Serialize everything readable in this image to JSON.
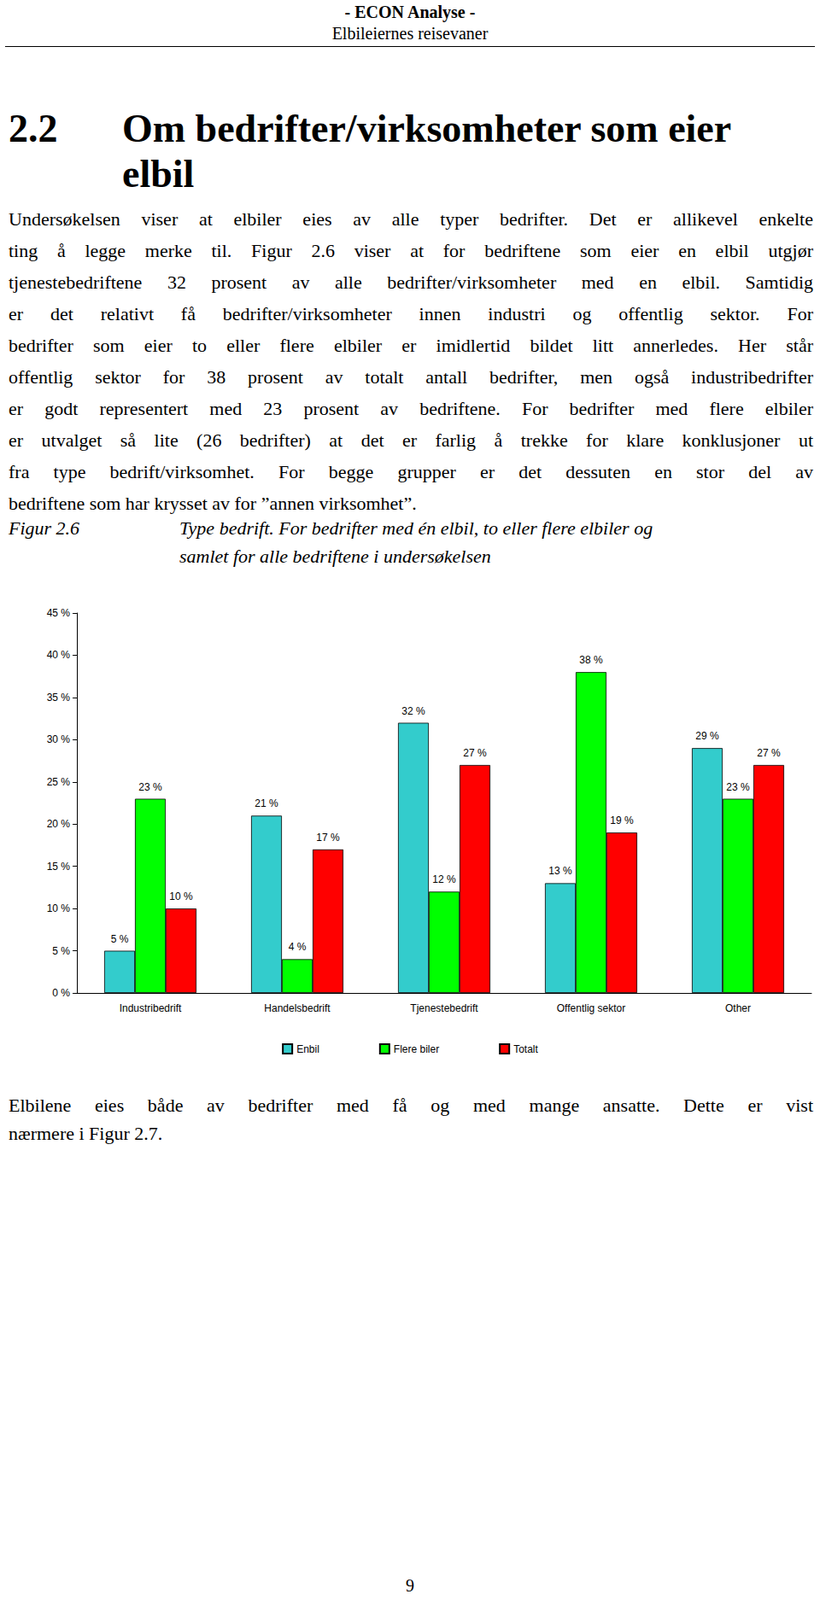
{
  "header": {
    "title": "- ECON Analyse -",
    "subtitle": "Elbileiernes reisevaner"
  },
  "heading": {
    "number": "2.2",
    "lines": [
      "Om bedrifter/virksomheter som eier",
      "elbil"
    ]
  },
  "paragraph": [
    "Undersøkelsen viser at elbiler eies av alle typer bedrifter. Det er allikevel enkelte",
    "ting å legge merke til. Figur 2.6 viser at for bedriftene som eier en elbil utgjør",
    "tjenestebedriftene 32 prosent av alle bedrifter/virksomheter med en elbil. Samtidig",
    "er det relativt få bedrifter/virksomheter innen industri og offentlig sektor. For",
    "bedrifter som eier to eller flere elbiler er imidlertid bildet litt annerledes. Her står",
    "offentlig sektor for 38 prosent av totalt antall bedrifter, men også industribedrifter",
    "er godt representert med 23 prosent av bedriftene. For bedrifter med flere elbiler",
    "er utvalget så lite (26 bedrifter) at det er farlig å trekke for klare konklusjoner ut",
    "fra type bedrift/virksomhet. For begge grupper er det dessuten en stor del av",
    "bedriftene som har krysset av for ”annen virksomhet”."
  ],
  "figure": {
    "label": "Figur 2.6",
    "caption": [
      "Type bedrift. For bedrifter med én elbil, to eller flere elbiler og",
      "samlet for alle bedriftene i undersøkelsen"
    ]
  },
  "chart_data": {
    "type": "bar",
    "categories": [
      "Industribedrift",
      "Handelsbedrift",
      "Tjenestebedrift",
      "Offentlig sektor",
      "Other"
    ],
    "series": [
      {
        "name": "Enbil",
        "color": "#33cccc",
        "values": [
          5,
          21,
          32,
          13,
          29
        ],
        "value_labels": [
          "5 %",
          "21 %",
          "32 %",
          "13 %",
          "29 %"
        ]
      },
      {
        "name": "Flere biler",
        "color": "#00ff00",
        "values": [
          23,
          4,
          12,
          38,
          23
        ],
        "value_labels": [
          "23 %",
          "4 %",
          "12 %",
          "38 %",
          "23 %"
        ]
      },
      {
        "name": "Totalt",
        "color": "#ff0000",
        "values": [
          10,
          17,
          27,
          19,
          27
        ],
        "value_labels": [
          "10 %",
          "17 %",
          "27 %",
          "19 %",
          "27 %"
        ]
      }
    ],
    "ylim": [
      0,
      45
    ],
    "yticks": [
      {
        "value": 0,
        "label": "0 %"
      },
      {
        "value": 5,
        "label": "5 %"
      },
      {
        "value": 10,
        "label": "10 %"
      },
      {
        "value": 15,
        "label": "15 %"
      },
      {
        "value": 20,
        "label": "20 %"
      },
      {
        "value": 25,
        "label": "25 %"
      },
      {
        "value": 30,
        "label": "30 %"
      },
      {
        "value": 35,
        "label": "35 %"
      },
      {
        "value": 40,
        "label": "40 %"
      },
      {
        "value": 45,
        "label": "45 %"
      }
    ],
    "grid": false,
    "legend": "bottom",
    "data_labels": true
  },
  "closing": [
    "Elbilene eies både av bedrifter med få og med mange ansatte. Dette er vist",
    "nærmere i Figur 2.7."
  ],
  "page_number": "9"
}
